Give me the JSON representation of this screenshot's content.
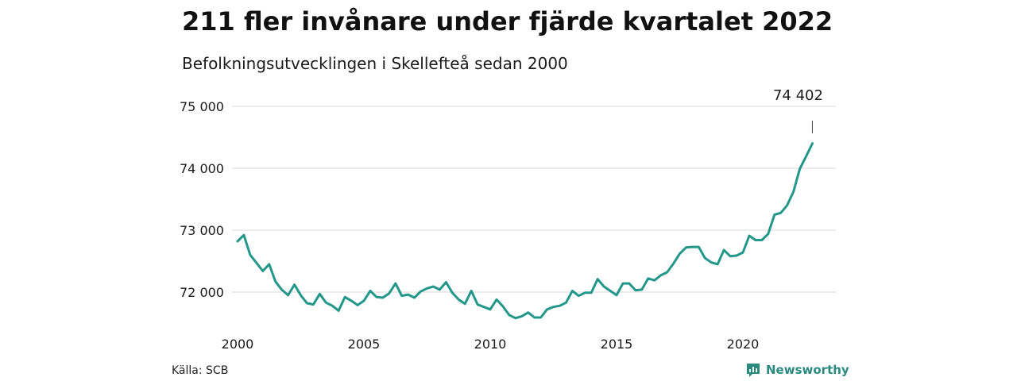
{
  "title": "211 fler invånare under fjärde kvartalet 2022",
  "subtitle": "Befolkningsutvecklingen i Skellefteå sedan 2000",
  "source": "Källa: SCB",
  "brand": "Newsworthy",
  "colors": {
    "line": "#22978a",
    "grid": "#d9d9d9",
    "text": "#1a1a1a",
    "brand": "#2a8a80"
  },
  "chart_data": {
    "type": "line",
    "title": "211 fler invånare under fjärde kvartalet 2022",
    "subtitle": "Befolkningsutvecklingen i Skellefteå sedan 2000",
    "xlabel": "",
    "ylabel": "",
    "xlim": [
      2000,
      2023
    ],
    "ylim": [
      71500,
      75000
    ],
    "grid": true,
    "x_ticks": [
      2000,
      2005,
      2010,
      2015,
      2020
    ],
    "x_tick_labels": [
      "2000",
      "2005",
      "2010",
      "2015",
      "2020"
    ],
    "y_ticks": [
      72000,
      73000,
      74000,
      75000
    ],
    "y_tick_labels": [
      "72 000",
      "73 000",
      "74 000",
      "75 000"
    ],
    "annotation": {
      "x": 2022.75,
      "y": 74402,
      "label": "74 402"
    },
    "series": [
      {
        "x": [
          2000.0,
          2000.25,
          2000.5,
          2000.75,
          2001.0,
          2001.25,
          2001.5,
          2001.75,
          2002.0,
          2002.25,
          2002.5,
          2002.75,
          2003.0,
          2003.25,
          2003.5,
          2003.75,
          2004.0,
          2004.25,
          2004.5,
          2004.75,
          2005.0,
          2005.25,
          2005.5,
          2005.75,
          2006.0,
          2006.25,
          2006.5,
          2006.75,
          2007.0,
          2007.25,
          2007.5,
          2007.75,
          2008.0,
          2008.25,
          2008.5,
          2008.75,
          2009.0,
          2009.25,
          2009.5,
          2009.75,
          2010.0,
          2010.25,
          2010.5,
          2010.75,
          2011.0,
          2011.25,
          2011.5,
          2011.75,
          2012.0,
          2012.25,
          2012.5,
          2012.75,
          2013.0,
          2013.25,
          2013.5,
          2013.75,
          2014.0,
          2014.25,
          2014.5,
          2014.75,
          2015.0,
          2015.25,
          2015.5,
          2015.75,
          2016.0,
          2016.25,
          2016.5,
          2016.75,
          2017.0,
          2017.25,
          2017.5,
          2017.75,
          2018.0,
          2018.25,
          2018.5,
          2018.75,
          2019.0,
          2019.25,
          2019.5,
          2019.75,
          2020.0,
          2020.25,
          2020.5,
          2020.75,
          2021.0,
          2021.25,
          2021.5,
          2021.75,
          2022.0,
          2022.25,
          2022.5,
          2022.75
        ],
        "y": [
          72820,
          72920,
          72600,
          72470,
          72340,
          72450,
          72170,
          72040,
          71950,
          72120,
          71950,
          71820,
          71800,
          71970,
          71830,
          71780,
          71700,
          71920,
          71860,
          71790,
          71860,
          72020,
          71920,
          71910,
          71980,
          72140,
          71940,
          71960,
          71910,
          72010,
          72060,
          72090,
          72040,
          72160,
          71990,
          71880,
          71810,
          72020,
          71800,
          71760,
          71720,
          71880,
          71770,
          71630,
          71580,
          71610,
          71670,
          71590,
          71590,
          71720,
          71760,
          71780,
          71830,
          72020,
          71940,
          71990,
          71990,
          72210,
          72090,
          72020,
          71950,
          72140,
          72140,
          72030,
          72040,
          72220,
          72190,
          72270,
          72320,
          72460,
          72620,
          72720,
          72730,
          72730,
          72550,
          72480,
          72450,
          72680,
          72580,
          72590,
          72640,
          72910,
          72840,
          72840,
          72940,
          73250,
          73280,
          73400,
          73620,
          73990,
          74191,
          74402
        ]
      }
    ]
  }
}
